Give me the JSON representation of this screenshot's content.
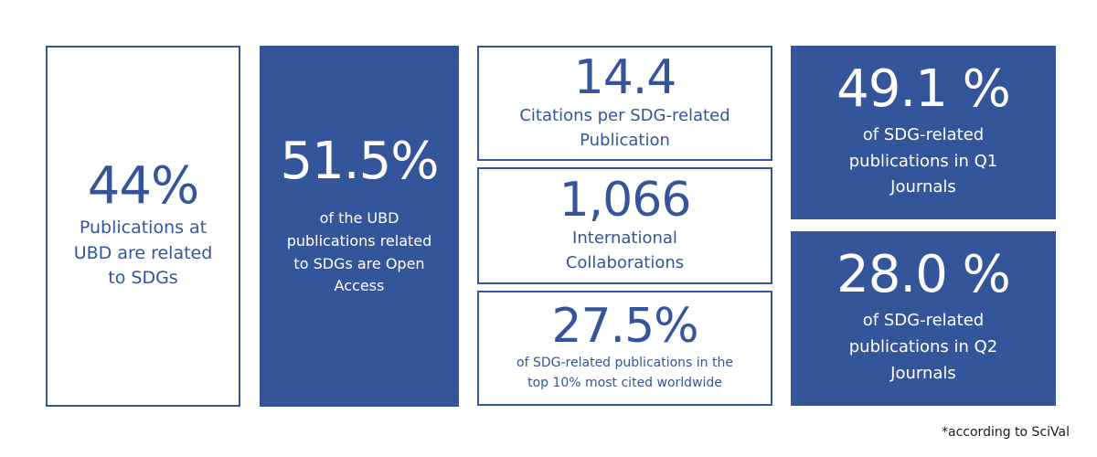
{
  "stats": [
    {
      "value": "44%",
      "label": "Publications at\nUBD are related\nto SDGs"
    },
    {
      "value": "51.5%",
      "label": "of the UBD\npublications related\nto SDGs are Open\nAccess"
    },
    {
      "value": "14.4",
      "label": "Citations per SDG-related\nPublication"
    },
    {
      "value": "1,066",
      "label": "International\nCollaborations"
    },
    {
      "value": "27.5%",
      "label": "of SDG-related publications in the\ntop 10% most cited worldwide"
    },
    {
      "value": "49.1 %",
      "label": "of SDG-related\npublications in Q1\nJournals"
    },
    {
      "value": "28.0 %",
      "label": "of SDG-related\npublications in Q2\nJournals"
    }
  ],
  "footnote": "*according to SciVal",
  "colors": {
    "primary": "#34559a",
    "background": "#ffffff"
  }
}
